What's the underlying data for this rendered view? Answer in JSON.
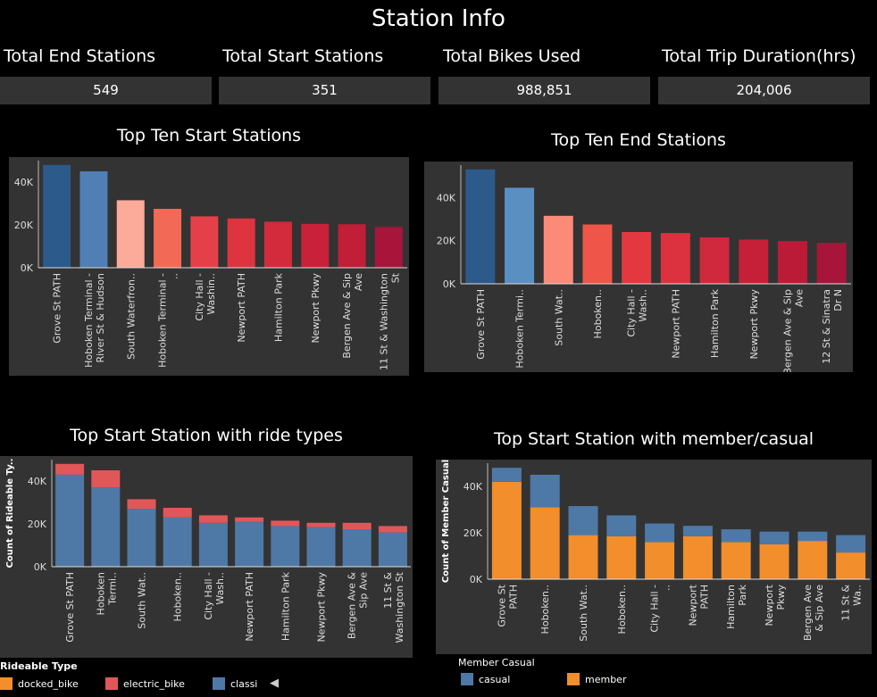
{
  "page": {
    "title": "Station Info"
  },
  "kpis": [
    {
      "label": "Total End Stations",
      "value": "549"
    },
    {
      "label": "Total Start Stations",
      "value": "351"
    },
    {
      "label": "Total Bikes Used",
      "value": "988,851"
    },
    {
      "label": "Total Trip Duration(hrs)",
      "value": "204,006"
    }
  ],
  "legends": {
    "ride_types": {
      "title": "Rideable Type",
      "items": [
        {
          "label": "docked_bike",
          "color": "#f28e2b"
        },
        {
          "label": "electric_bike",
          "color": "#e15759"
        },
        {
          "label": "classi",
          "color": "#4e79a7"
        }
      ],
      "scroll_icon": "◀"
    },
    "member_casual": {
      "title": "Member Casual",
      "items": [
        {
          "label": "casual",
          "color": "#4e79a7"
        },
        {
          "label": "member",
          "color": "#f28e2b"
        }
      ]
    }
  },
  "chart_data": [
    {
      "type": "bar",
      "title": "Top Ten Start Stations",
      "categories": [
        "Grove St PATH",
        "Hoboken Terminal - River St & Hudson Pl",
        "South Waterfron..",
        "Hoboken Terminal - ..",
        "City Hall - Washin..",
        "Newport PATH",
        "Hamilton Park",
        "Newport Pkwy",
        "Bergen Ave & Sip Ave",
        "11 St & Washington St"
      ],
      "values": [
        48000,
        45000,
        31500,
        27500,
        24000,
        23000,
        21500,
        20500,
        20300,
        19000
      ],
      "colors": [
        "#2c5a8a",
        "#4f7fb5",
        "#fcaa99",
        "#f26a55",
        "#e5404a",
        "#de343f",
        "#d32a3c",
        "#c82139",
        "#c11e37",
        "#a8153a"
      ],
      "yticks": [
        "0K",
        "20K",
        "40K"
      ],
      "ylim": [
        0,
        50000
      ]
    },
    {
      "type": "bar",
      "title": "Top Ten End Stations",
      "categories": [
        "Grove St PATH",
        "Hoboken Termi..",
        "South Wat..",
        "Hoboken..",
        "City Hall - Wash..",
        "Newport PATH",
        "Hamilton Park",
        "Newport Pkwy",
        "Bergen Ave & Sip Ave",
        "12 St & Sinatra Dr N"
      ],
      "values": [
        53000,
        44500,
        31500,
        27500,
        24000,
        23500,
        21500,
        20500,
        19800,
        19000
      ],
      "colors": [
        "#2c5a8a",
        "#5a8fc2",
        "#fc8a78",
        "#ef5548",
        "#e3383f",
        "#dc313f",
        "#d0283c",
        "#c52038",
        "#bb1b37",
        "#a8153a"
      ],
      "yticks": [
        "0K",
        "20K",
        "40K"
      ],
      "ylim": [
        0,
        55000
      ]
    },
    {
      "type": "bar",
      "title": "Top Start Station with ride types",
      "ylabel": "Count of Rideable Ty..",
      "categories": [
        "Grove St PATH",
        "Hoboken Termi..",
        "South Wat..",
        "Hoboken..",
        "City Hall - Wash..",
        "Newport PATH",
        "Hamilton Park",
        "Newport Pkwy",
        "Bergen Ave & Sip Ave",
        "11 St & Washington St"
      ],
      "series": [
        {
          "name": "classic_bike",
          "color": "#4e79a7",
          "values": [
            43000,
            37000,
            27000,
            23000,
            20500,
            21000,
            19000,
            18500,
            17500,
            16000
          ]
        },
        {
          "name": "electric_bike",
          "color": "#e15759",
          "values": [
            5000,
            8000,
            4500,
            4500,
            3500,
            2000,
            2500,
            2000,
            3000,
            3000
          ]
        },
        {
          "name": "docked_bike",
          "color": "#f28e2b",
          "values": [
            0,
            0,
            0,
            0,
            0,
            0,
            0,
            0,
            0,
            0
          ]
        }
      ],
      "yticks": [
        "0K",
        "20K",
        "40K"
      ],
      "ylim": [
        0,
        50000
      ]
    },
    {
      "type": "bar",
      "title": "Top Start Station with member/casual",
      "ylabel": "Count of Member Casual",
      "categories": [
        "Grove St PATH",
        "Hoboken..",
        "South Wat..",
        "Hoboken..",
        "City Hall - ..",
        "Newport PATH",
        "Hamilton Park",
        "Newport Pkwy",
        "Bergen Ave & Sip Ave",
        "11 St & Wa.."
      ],
      "series": [
        {
          "name": "member",
          "color": "#f28e2b",
          "values": [
            42000,
            31000,
            19000,
            18500,
            16000,
            18500,
            16000,
            15000,
            16500,
            11500
          ]
        },
        {
          "name": "casual",
          "color": "#4e79a7",
          "values": [
            6000,
            14000,
            12500,
            9000,
            8000,
            4500,
            5500,
            5500,
            4000,
            7500
          ]
        }
      ],
      "yticks": [
        "0K",
        "20K",
        "40K"
      ],
      "ylim": [
        0,
        50000
      ]
    }
  ]
}
